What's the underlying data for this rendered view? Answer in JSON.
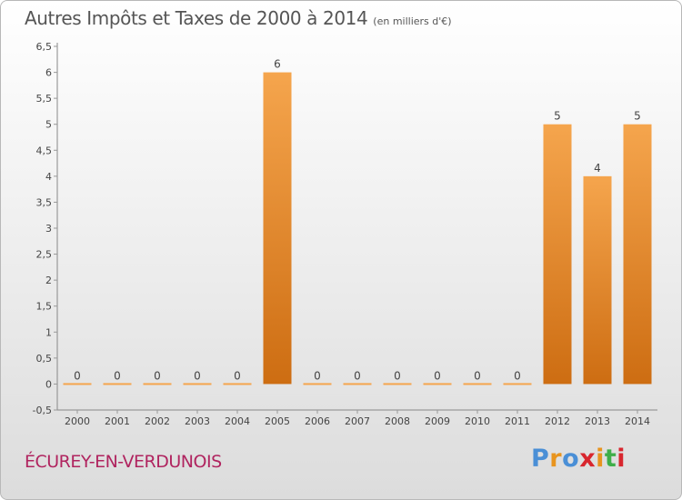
{
  "header": {
    "title": "Autres Impôts et Taxes de 2000 à 2014",
    "subtitle": "(en milliers d'€)"
  },
  "commune": "ÉCUREY-EN-VERDUNOIS",
  "logo": {
    "letters": [
      "P",
      "r",
      "o",
      "x",
      "i",
      "t",
      "i"
    ],
    "colors": [
      "#4a8fd6",
      "#e8941e",
      "#4a8fd6",
      "#d8262e",
      "#e8941e",
      "#3fae49",
      "#d8262e"
    ]
  },
  "colors": {
    "bar_light": "#f5a54d",
    "bar_dark": "#cd6d12",
    "axis": "#888888",
    "grid_tick": "#999999",
    "label": "#444444"
  },
  "chart_data": {
    "type": "bar",
    "title": "Autres Impôts et Taxes de 2000 à 2014",
    "subtitle": "(en milliers d'€)",
    "categories": [
      "2000",
      "2001",
      "2002",
      "2003",
      "2004",
      "2005",
      "2006",
      "2007",
      "2008",
      "2009",
      "2010",
      "2011",
      "2012",
      "2013",
      "2014"
    ],
    "values": [
      0,
      0,
      0,
      0,
      0,
      6,
      0,
      0,
      0,
      0,
      0,
      0,
      5,
      4,
      5
    ],
    "data_labels": [
      "0",
      "0",
      "0",
      "0",
      "0",
      "6",
      "0",
      "0",
      "0",
      "0",
      "0",
      "0",
      "5",
      "4",
      "5"
    ],
    "ylim": [
      -0.5,
      6.5
    ],
    "yticks": [
      -0.5,
      0,
      0.5,
      1,
      1.5,
      2,
      2.5,
      3,
      3.5,
      4,
      4.5,
      5,
      5.5,
      6,
      6.5
    ],
    "ytick_labels": [
      "-0,5",
      "0",
      "0,5",
      "1",
      "1,5",
      "2",
      "2,5",
      "3",
      "3,5",
      "4",
      "4,5",
      "5",
      "5,5",
      "6",
      "6,5"
    ],
    "grid": false,
    "legend": "none"
  }
}
